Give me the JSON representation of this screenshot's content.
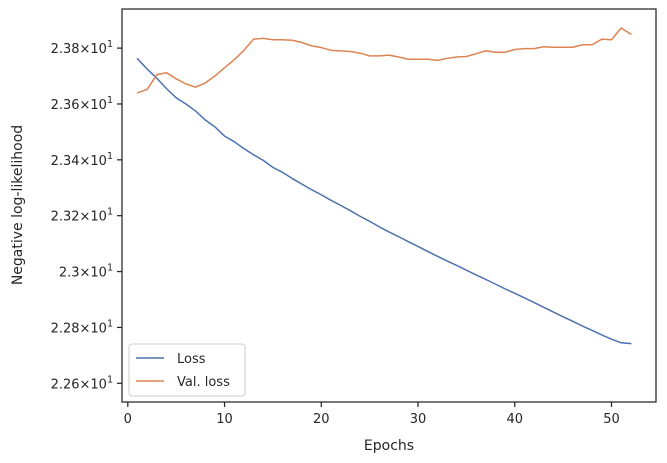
{
  "chart_data": {
    "type": "line",
    "title": "",
    "xlabel": "Epochs",
    "ylabel": "Negative log-likelihood",
    "xlim": [
      -0.6,
      54.6
    ],
    "ylim": [
      22.533,
      23.94
    ],
    "x_ticks": [
      {
        "value": 0,
        "label": "0"
      },
      {
        "value": 10,
        "label": "10"
      },
      {
        "value": 20,
        "label": "20"
      },
      {
        "value": 30,
        "label": "30"
      },
      {
        "value": 40,
        "label": "40"
      },
      {
        "value": 50,
        "label": "50"
      }
    ],
    "y_ticks": [
      {
        "value": 22.6,
        "mantissa": "2.26",
        "exponent": "1"
      },
      {
        "value": 22.8,
        "mantissa": "2.28",
        "exponent": "1"
      },
      {
        "value": 23.0,
        "mantissa": "2.3",
        "exponent": "1"
      },
      {
        "value": 23.2,
        "mantissa": "2.32",
        "exponent": "1"
      },
      {
        "value": 23.4,
        "mantissa": "2.34",
        "exponent": "1"
      },
      {
        "value": 23.6,
        "mantissa": "2.36",
        "exponent": "1"
      },
      {
        "value": 23.8,
        "mantissa": "2.38",
        "exponent": "1"
      }
    ],
    "grid": false,
    "legend_position": "lower-left",
    "x": [
      1,
      2,
      3,
      4,
      5,
      6,
      7,
      8,
      9,
      10,
      11,
      12,
      13,
      14,
      15,
      16,
      17,
      18,
      19,
      20,
      21,
      22,
      23,
      24,
      25,
      26,
      27,
      28,
      29,
      30,
      31,
      32,
      33,
      34,
      35,
      36,
      37,
      38,
      39,
      40,
      41,
      42,
      43,
      44,
      45,
      46,
      47,
      48,
      49,
      50,
      51,
      52
    ],
    "series": [
      {
        "name": "Loss",
        "color": "#4c72b0",
        "values": [
          23.762,
          23.725,
          23.692,
          23.655,
          23.622,
          23.6,
          23.575,
          23.543,
          23.518,
          23.485,
          23.465,
          23.44,
          23.418,
          23.398,
          23.373,
          23.355,
          23.333,
          23.313,
          23.293,
          23.275,
          23.255,
          23.237,
          23.218,
          23.198,
          23.18,
          23.16,
          23.142,
          23.125,
          23.107,
          23.09,
          23.072,
          23.055,
          23.038,
          23.022,
          23.005,
          22.988,
          22.972,
          22.955,
          22.938,
          22.922,
          22.906,
          22.889,
          22.872,
          22.855,
          22.838,
          22.822,
          22.805,
          22.789,
          22.773,
          22.758,
          22.745,
          22.742
        ]
      },
      {
        "name": "Val. loss",
        "color": "#dd8452",
        "values": [
          23.64,
          23.652,
          23.705,
          23.712,
          23.69,
          23.672,
          23.66,
          23.675,
          23.7,
          23.73,
          23.758,
          23.792,
          23.832,
          23.835,
          23.83,
          23.83,
          23.828,
          23.82,
          23.808,
          23.802,
          23.792,
          23.79,
          23.788,
          23.782,
          23.772,
          23.772,
          23.775,
          23.768,
          23.76,
          23.76,
          23.76,
          23.756,
          23.763,
          23.768,
          23.77,
          23.78,
          23.79,
          23.785,
          23.785,
          23.795,
          23.798,
          23.798,
          23.805,
          23.803,
          23.803,
          23.803,
          23.812,
          23.812,
          23.832,
          23.83,
          23.872,
          23.85
        ]
      }
    ]
  }
}
